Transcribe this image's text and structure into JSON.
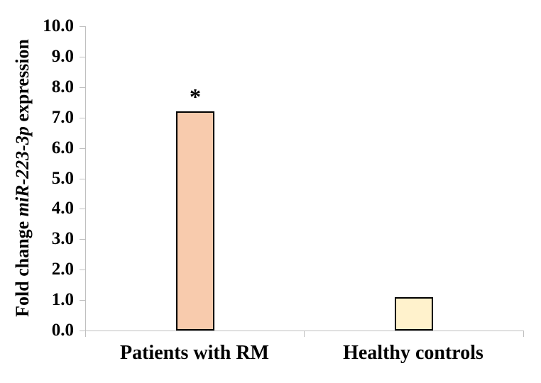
{
  "chart_data": {
    "type": "bar",
    "title": "",
    "ylabel": {
      "prefix": "Fold change ",
      "italic": "miR-223-3p",
      "suffix": " expression"
    },
    "categories": [
      "Patients with RM",
      "Healthy controls"
    ],
    "series": [
      {
        "name": "Fold change miR-223-3p expression",
        "values": [
          7.1,
          1.0
        ]
      }
    ],
    "bar_colors": [
      "#F8CBAD",
      "#FFF2CC"
    ],
    "bar_border_color": "#000000",
    "annotations": [
      {
        "text": "*",
        "category": "Patients with RM",
        "meaning": "significant"
      }
    ],
    "ylim": [
      0,
      10
    ],
    "ytick_step": 1.0,
    "ytick_labels": [
      "10.0",
      "9.0",
      "8.0",
      "7.0",
      "6.0",
      "5.0",
      "4.0",
      "3.0",
      "2.0",
      "1.0",
      "0.0"
    ],
    "axis_color": "#BFBFBF",
    "grid": false,
    "legend": "none",
    "background": "#FFFFFF"
  }
}
